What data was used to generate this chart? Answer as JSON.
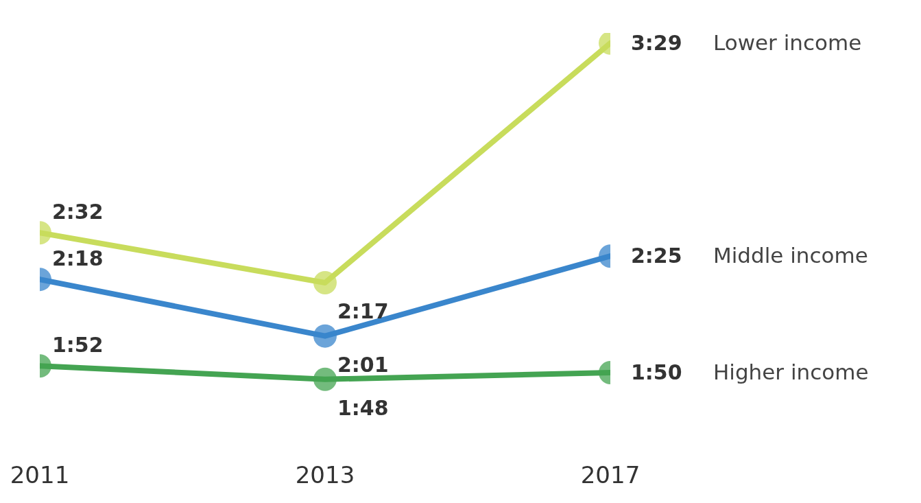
{
  "chart_data": {
    "type": "line",
    "categories": [
      "2011",
      "2013",
      "2017"
    ],
    "marker": "circle",
    "line_style": "solid",
    "legend": false,
    "grid": false,
    "series": [
      {
        "name": "Lower income",
        "color": "#c8dc5c",
        "values": [
          152,
          137,
          209
        ],
        "value_labels": [
          "2:32",
          "2:17",
          "3:29"
        ]
      },
      {
        "name": "Middle income",
        "color": "#3a86cc",
        "values": [
          138,
          121,
          145
        ],
        "value_labels": [
          "2:18",
          "2:01",
          "2:25"
        ]
      },
      {
        "name": "Higher income",
        "color": "#44a452",
        "values": [
          112,
          108,
          110
        ],
        "value_labels": [
          "1:52",
          "1:48",
          "1:50"
        ]
      }
    ]
  }
}
